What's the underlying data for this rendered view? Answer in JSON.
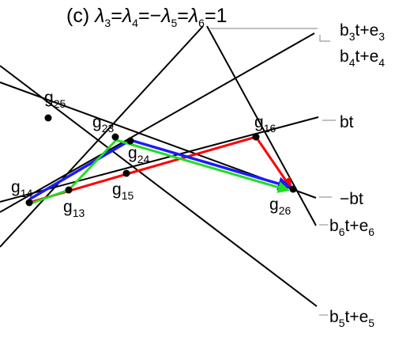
{
  "figure": {
    "title": {
      "prefix": "(c) ",
      "parts": [
        {
          "sym": "λ",
          "sub": "3",
          "after": "="
        },
        {
          "sym": "λ",
          "sub": "4",
          "after": "=−"
        },
        {
          "sym": "λ",
          "sub": "5",
          "after": "="
        },
        {
          "sym": "λ",
          "sub": "6",
          "after": "=1"
        }
      ]
    },
    "line_labels": [
      {
        "id": "b3",
        "base": "b",
        "sub": "3",
        "rest": "t+e",
        "sub2": "3"
      },
      {
        "id": "b4",
        "base": "b",
        "sub": "4",
        "rest": "t+e",
        "sub2": "4"
      },
      {
        "id": "bt",
        "text": "bt"
      },
      {
        "id": "neg-bt",
        "text": "−bt"
      },
      {
        "id": "b6",
        "base": "b",
        "sub": "6",
        "rest": "t+e",
        "sub2": "6"
      },
      {
        "id": "b5",
        "base": "b",
        "sub": "5",
        "rest": "t+e",
        "sub2": "5"
      }
    ],
    "point_labels": [
      {
        "id": "g25",
        "base": "g",
        "sub": "25"
      },
      {
        "id": "g23",
        "base": "g",
        "sub": "23"
      },
      {
        "id": "g16",
        "base": "g",
        "sub": "16"
      },
      {
        "id": "g24",
        "base": "g",
        "sub": "24"
      },
      {
        "id": "g14",
        "base": "g",
        "sub": "14"
      },
      {
        "id": "g15",
        "base": "g",
        "sub": "15"
      },
      {
        "id": "g13",
        "base": "g",
        "sub": "13"
      },
      {
        "id": "g26",
        "base": "g",
        "sub": "26"
      }
    ],
    "colors": {
      "line": "#000000",
      "leader": "#999999",
      "red_path": "#ff0000",
      "green_path": "#22dd22",
      "blue_path": "#1a1aff",
      "point": "#000000"
    }
  }
}
